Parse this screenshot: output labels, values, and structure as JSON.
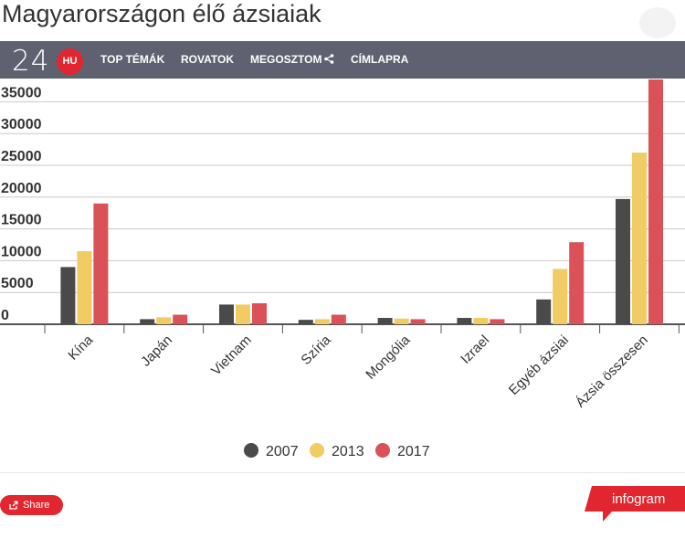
{
  "page": {
    "title": "Magyarországon élő ázsiaiak"
  },
  "nav": {
    "logo_number": "24",
    "logo_badge": "HU",
    "items": [
      "TOP TÉMÁK",
      "ROVATOK",
      "MEGOSZTOM",
      "CÍMLAPRA"
    ]
  },
  "footer": {
    "share_label": "Share",
    "brand": "infogram"
  },
  "icons": {
    "nav_share": "share-icon",
    "share_button": "share-icon",
    "corner": "circle-button-icon"
  },
  "colors": {
    "navbar": "#5f6170",
    "accent": "#e2262f",
    "series_2007": "#4a4a4a",
    "series_2013": "#f1cb63",
    "series_2017": "#da5157"
  },
  "chart_data": {
    "type": "bar",
    "title": "",
    "xlabel": "",
    "ylabel": "",
    "categories": [
      "Kína",
      "Japán",
      "Vietnam",
      "Szíria",
      "Mongólia",
      "Izrael",
      "Egyéb ázsiai",
      "Ázsia összesen"
    ],
    "series": [
      {
        "name": "2007",
        "color": "#4a4a4a",
        "values": [
          9000,
          800,
          3100,
          700,
          1000,
          1000,
          3900,
          19700
        ]
      },
      {
        "name": "2013",
        "color": "#f1cb63",
        "values": [
          11500,
          1100,
          3100,
          800,
          900,
          1000,
          8700,
          27000
        ]
      },
      {
        "name": "2017",
        "color": "#da5157",
        "values": [
          19000,
          1500,
          3300,
          1500,
          800,
          800,
          12900,
          38500
        ]
      }
    ],
    "yticks": [
      "0",
      "5000",
      "10000",
      "15000",
      "20000",
      "25000",
      "30000",
      "35000"
    ],
    "ylim": [
      0,
      38000
    ],
    "grid": true,
    "legend": "bottom-center"
  }
}
